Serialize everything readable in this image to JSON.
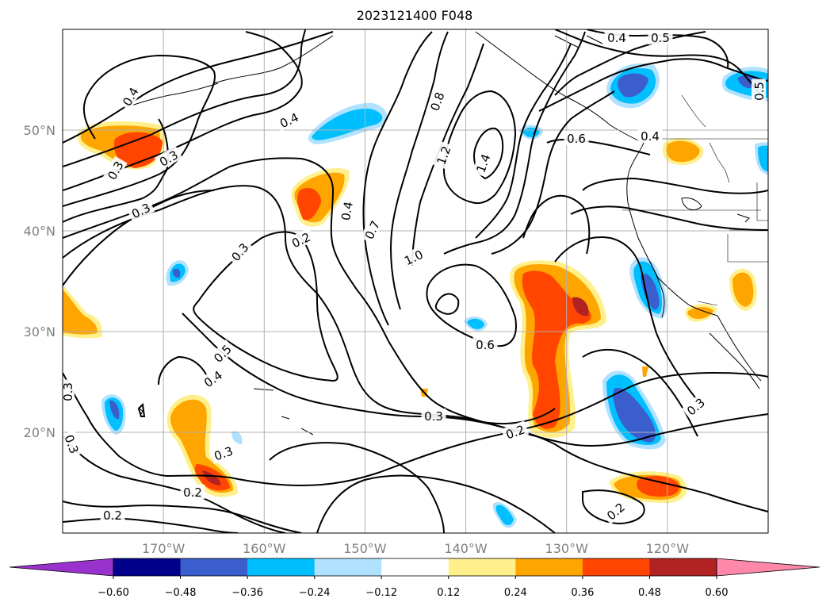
{
  "title": "2023121400 F048",
  "map": {
    "lat_ticks": [
      {
        "deg": 50,
        "label": "50°N"
      },
      {
        "deg": 40,
        "label": "40°N"
      },
      {
        "deg": 30,
        "label": "30°N"
      },
      {
        "deg": 20,
        "label": "20°N"
      }
    ],
    "lon_ticks": [
      {
        "deg": -170,
        "label": "170°W"
      },
      {
        "deg": -160,
        "label": "160°W"
      },
      {
        "deg": -150,
        "label": "150°W"
      },
      {
        "deg": -140,
        "label": "140°W"
      },
      {
        "deg": -130,
        "label": "130°W"
      },
      {
        "deg": -120,
        "label": "120°W"
      }
    ],
    "extent": {
      "lon_min": -180,
      "lon_max": -110,
      "lat_min": 10,
      "lat_max": 60
    },
    "grid": true,
    "contour_labels": [
      "0.4",
      "0.5",
      "0.5",
      "0.4",
      "0.8",
      "0.4",
      "1.2",
      "1.4",
      "0.6",
      "0.4",
      "0.3",
      "0.3",
      "0.3",
      "0.2",
      "0.4",
      "0.7",
      "1.0",
      "0.3",
      "0.5",
      "0.4",
      "0.6",
      "0.3",
      "0.3",
      "0.3",
      "0.3",
      "0.2",
      "0.3",
      "0.2",
      "0.2",
      "0.2"
    ]
  },
  "colorbar": {
    "ticks": [
      "−0.60",
      "−0.48",
      "−0.36",
      "−0.24",
      "−0.12",
      "0.12",
      "0.24",
      "0.36",
      "0.48",
      "0.60"
    ],
    "colors": [
      "#9932cc",
      "#00008b",
      "#3a5fcd",
      "#00bfff",
      "#b0e2ff",
      "#ffffff",
      "#fff08c",
      "#ffa500",
      "#ff4500",
      "#b22222",
      "#ff88aa"
    ]
  }
}
